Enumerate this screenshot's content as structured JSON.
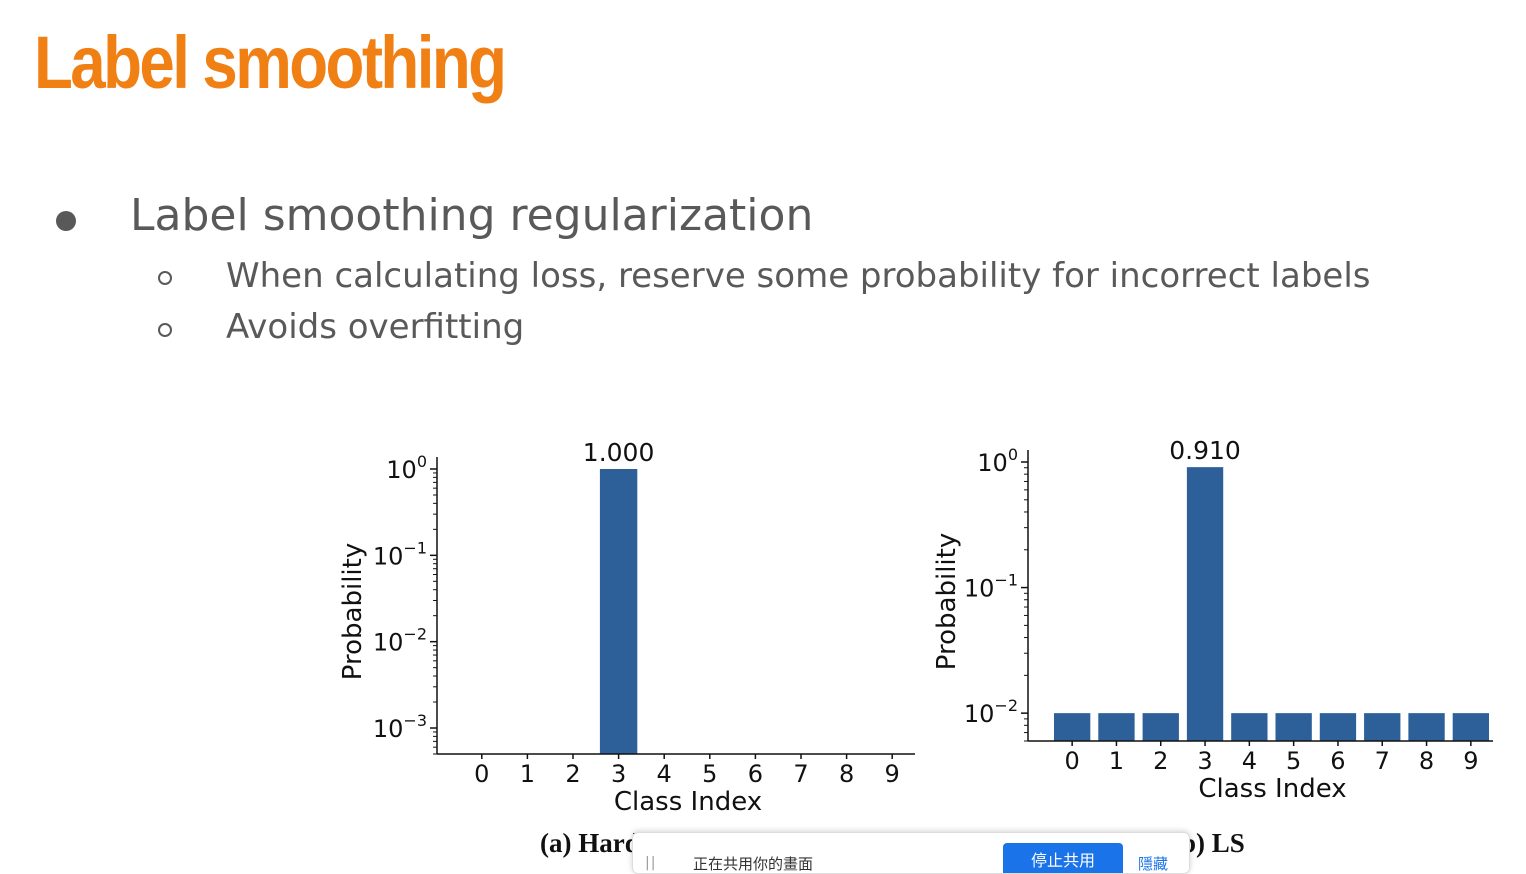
{
  "slide": {
    "title": "Label smoothing",
    "bullet": "Label smoothing regularization",
    "subbullets": [
      "When calculating loss, reserve some probability for incorrect labels",
      "Avoids overfitting"
    ]
  },
  "chart_data": [
    {
      "type": "bar",
      "caption": "(a) Hard Label",
      "xlabel": "Class Index",
      "ylabel": "Probability",
      "yscale": "log",
      "ylim": [
        0.0005,
        1
      ],
      "yticks": [
        "10^0",
        "10^-1",
        "10^-2",
        "10^-3"
      ],
      "categories": [
        "0",
        "1",
        "2",
        "3",
        "4",
        "5",
        "6",
        "7",
        "8",
        "9"
      ],
      "values": [
        0,
        0,
        0,
        1.0,
        0,
        0,
        0,
        0,
        0,
        0
      ],
      "annotation": "1.000",
      "color": "#2d5f98",
      "grid": false
    },
    {
      "type": "bar",
      "caption": "(b) LS",
      "xlabel": "Class Index",
      "ylabel": "Probability",
      "yscale": "log",
      "ylim": [
        0.006,
        1
      ],
      "yticks": [
        "10^0",
        "10^-1",
        "10^-2"
      ],
      "categories": [
        "0",
        "1",
        "2",
        "3",
        "4",
        "5",
        "6",
        "7",
        "8",
        "9"
      ],
      "values": [
        0.01,
        0.01,
        0.01,
        0.91,
        0.01,
        0.01,
        0.01,
        0.01,
        0.01,
        0.01
      ],
      "annotation": "0.910",
      "color": "#2d5f98",
      "grid": false
    }
  ],
  "share_bar": {
    "handle": "||",
    "text": "正在共用你的畫面",
    "stop_button": "停止共用",
    "hide_link": "隱藏"
  }
}
